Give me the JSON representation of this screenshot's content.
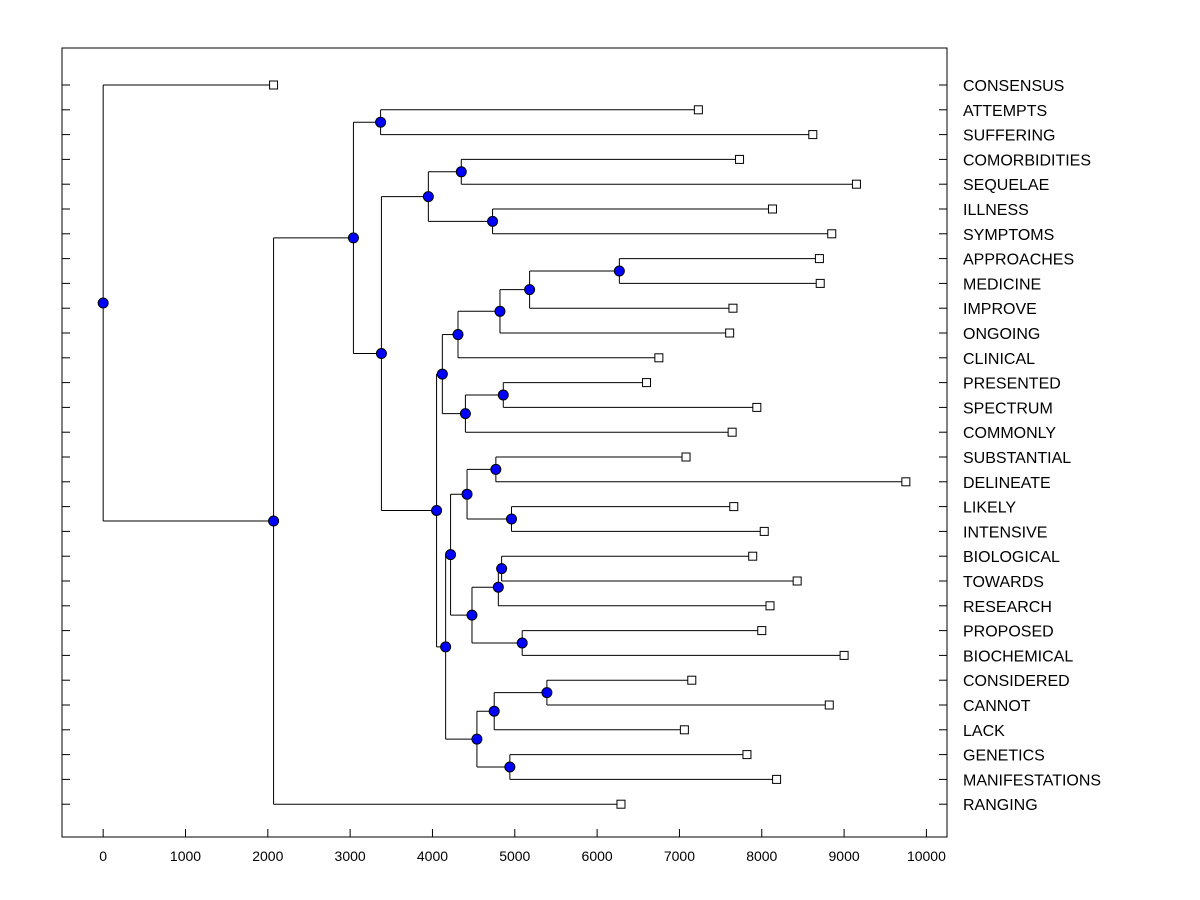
{
  "chart_data": {
    "type": "dendrogram",
    "x_range": [
      -500,
      10250
    ],
    "x_ticks": [
      0,
      1000,
      2000,
      3000,
      4000,
      5000,
      6000,
      7000,
      8000,
      9000,
      10000
    ],
    "x_tick_labels": [
      "0",
      "1000",
      "2000",
      "3000",
      "4000",
      "5000",
      "6000",
      "7000",
      "8000",
      "9000",
      "10000"
    ],
    "colors": {
      "node": "#0000ff",
      "line": "#000000",
      "leaf_fill": "#ffffff"
    },
    "leaves": [
      {
        "label": "CONSENSUS",
        "value": 2070
      },
      {
        "label": "ATTEMPTS",
        "value": 7230
      },
      {
        "label": "SUFFERING",
        "value": 8620
      },
      {
        "label": "COMORBIDITIES",
        "value": 7730
      },
      {
        "label": "SEQUELAE",
        "value": 9150
      },
      {
        "label": "ILLNESS",
        "value": 8130
      },
      {
        "label": "SYMPTOMS",
        "value": 8850
      },
      {
        "label": "APPROACHES",
        "value": 8700
      },
      {
        "label": "MEDICINE",
        "value": 8710
      },
      {
        "label": "IMPROVE",
        "value": 7650
      },
      {
        "label": "ONGOING",
        "value": 7610
      },
      {
        "label": "CLINICAL",
        "value": 6750
      },
      {
        "label": "PRESENTED",
        "value": 6600
      },
      {
        "label": "SPECTRUM",
        "value": 7940
      },
      {
        "label": "COMMONLY",
        "value": 7640
      },
      {
        "label": "SUBSTANTIAL",
        "value": 7080
      },
      {
        "label": "DELINEATE",
        "value": 9750
      },
      {
        "label": "LIKELY",
        "value": 7660
      },
      {
        "label": "INTENSIVE",
        "value": 8030
      },
      {
        "label": "BIOLOGICAL",
        "value": 7890
      },
      {
        "label": "TOWARDS",
        "value": 8430
      },
      {
        "label": "RESEARCH",
        "value": 8100
      },
      {
        "label": "PROPOSED",
        "value": 8000
      },
      {
        "label": "BIOCHEMICAL",
        "value": 9000
      },
      {
        "label": "CONSIDERED",
        "value": 7150
      },
      {
        "label": "CANNOT",
        "value": 8820
      },
      {
        "label": "LACK",
        "value": 7060
      },
      {
        "label": "GENETICS",
        "value": 7820
      },
      {
        "label": "MANIFESTATIONS",
        "value": 8180
      },
      {
        "label": "RANGING",
        "value": 6290
      }
    ],
    "merges": [
      {
        "id": "n1",
        "value": 3370,
        "children": [
          1,
          2
        ]
      },
      {
        "id": "n2",
        "value": 4350,
        "children": [
          3,
          4
        ]
      },
      {
        "id": "n3",
        "value": 4730,
        "children": [
          5,
          6
        ]
      },
      {
        "id": "n4",
        "value": 3950,
        "children": [
          "n2",
          "n3"
        ]
      },
      {
        "id": "n5",
        "value": 6270,
        "children": [
          7,
          8
        ]
      },
      {
        "id": "n6",
        "value": 5180,
        "children": [
          "n5",
          9
        ]
      },
      {
        "id": "n7",
        "value": 4820,
        "children": [
          "n6",
          10
        ]
      },
      {
        "id": "n8",
        "value": 4310,
        "children": [
          "n7",
          11
        ]
      },
      {
        "id": "n9",
        "value": 4860,
        "children": [
          12,
          13
        ]
      },
      {
        "id": "n10",
        "value": 4400,
        "children": [
          "n9",
          14
        ]
      },
      {
        "id": "n11",
        "value": 4120,
        "children": [
          "n8",
          "n10"
        ]
      },
      {
        "id": "n12",
        "value": 4770,
        "children": [
          15,
          16
        ]
      },
      {
        "id": "n13",
        "value": 4960,
        "children": [
          17,
          18
        ]
      },
      {
        "id": "n14",
        "value": 4420,
        "children": [
          "n12",
          "n13"
        ]
      },
      {
        "id": "n15",
        "value": 4840,
        "children": [
          19,
          20
        ]
      },
      {
        "id": "n16",
        "value": 4800,
        "children": [
          "n15",
          21
        ]
      },
      {
        "id": "n17",
        "value": 5090,
        "children": [
          22,
          23
        ]
      },
      {
        "id": "n18",
        "value": 4480,
        "children": [
          "n16",
          "n17"
        ]
      },
      {
        "id": "n19",
        "value": 4220,
        "children": [
          "n14",
          "n18"
        ]
      },
      {
        "id": "n20",
        "value": 5390,
        "children": [
          24,
          25
        ]
      },
      {
        "id": "n21",
        "value": 4750,
        "children": [
          "n20",
          26
        ]
      },
      {
        "id": "n22",
        "value": 4940,
        "children": [
          27,
          28
        ]
      },
      {
        "id": "n23",
        "value": 4540,
        "children": [
          "n21",
          "n22"
        ]
      },
      {
        "id": "n24",
        "value": 4160,
        "children": [
          "n19",
          "n23"
        ]
      },
      {
        "id": "n25",
        "value": 4050,
        "children": [
          "n11",
          "n24"
        ]
      },
      {
        "id": "n26",
        "value": 3380,
        "children": [
          "n4",
          "n25"
        ]
      },
      {
        "id": "n27",
        "value": 3040,
        "children": [
          "n1",
          "n26"
        ]
      },
      {
        "id": "n28",
        "value": 2070,
        "children": [
          "n27",
          29
        ]
      },
      {
        "id": "n29",
        "value": 0,
        "children": [
          0,
          "n28"
        ]
      }
    ]
  }
}
